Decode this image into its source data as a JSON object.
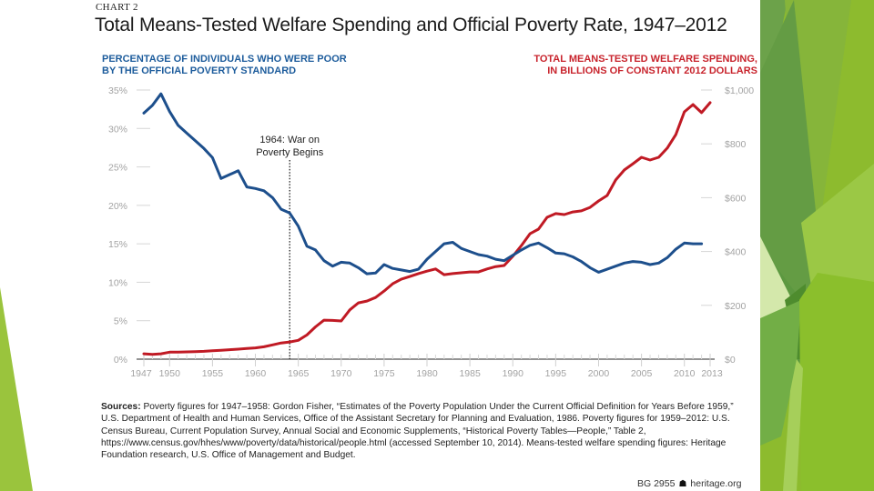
{
  "chart_label": "CHART 2",
  "colors": {
    "poverty_line": "#1d4f8c",
    "spending_line": "#c01a24",
    "left_title": "#1d5c9c",
    "right_title": "#c8232c",
    "axis_text": "#a3a3a3",
    "green_dark": "#5f9a3e",
    "green_mid": "#7fb33a",
    "green_light": "#9ac43d",
    "green_pale": "#cfe3a3"
  },
  "footer": {
    "code": "BG 2955",
    "icon": "liberty-bell-icon",
    "site": "heritage.org"
  },
  "sources": {
    "label": "Sources:",
    "text": " Poverty figures for 1947–1958: Gordon Fisher, “Estimates of the Poverty Population Under the Current Official Definition for Years Before 1959,” U.S. Department of Health and Human Services, Office of the Assistant Secretary for Planning and Evaluation, 1986. Poverty figures for 1959–2012: U.S. Census Bureau, Current Population Survey, Annual Social and Economic Supplements, “Historical Poverty Tables—People,” Table 2, https://www.census.gov/hhes/www/poverty/data/historical/people.html (accessed September 10, 2014). Means-tested welfare spending figures: Heritage Foundation research, U.S. Office of Management and Budget."
  },
  "chart_data": {
    "type": "line",
    "title": "Total Means-Tested Welfare Spending and Official Poverty Rate, 1947–2012",
    "left_axis": {
      "label_line1": "PERCENTAGE OF INDIVIDUALS WHO WERE POOR",
      "label_line2": "BY THE OFFICIAL POVERTY STANDARD",
      "range": [
        0,
        35
      ],
      "ticks": [
        0,
        5,
        10,
        15,
        20,
        25,
        30,
        35
      ],
      "tick_labels": [
        "0%",
        "5%",
        "10%",
        "15%",
        "20%",
        "25%",
        "30%",
        "35%"
      ]
    },
    "right_axis": {
      "label_line1": "TOTAL MEANS-TESTED WELFARE SPENDING,",
      "label_line2": "IN BILLIONS OF CONSTANT 2012 DOLLARS",
      "range": [
        0,
        1000
      ],
      "ticks": [
        0,
        200,
        400,
        600,
        800,
        1000
      ],
      "tick_labels": [
        "$0",
        "$200",
        "$400",
        "$600",
        "$800",
        "$1,000"
      ]
    },
    "x_axis": {
      "range": [
        1947,
        2013
      ],
      "tick_labels": [
        "1947",
        "1950",
        "1955",
        "1960",
        "1965",
        "1970",
        "1975",
        "1980",
        "1985",
        "1990",
        "1995",
        "2000",
        "2005",
        "2010",
        "2013"
      ],
      "tick_values": [
        1947,
        1950,
        1955,
        1960,
        1965,
        1970,
        1975,
        1980,
        1985,
        1990,
        1995,
        2000,
        2005,
        2010,
        2013
      ]
    },
    "grid": false,
    "annotation": {
      "x": 1964,
      "line1": "1964: War on",
      "line2": "Poverty Begins"
    },
    "series": [
      {
        "name": "Official Poverty Rate (%)",
        "axis": "left",
        "x": [
          1947,
          1948,
          1949,
          1950,
          1951,
          1952,
          1953,
          1954,
          1955,
          1956,
          1957,
          1958,
          1959,
          1960,
          1961,
          1962,
          1963,
          1964,
          1965,
          1966,
          1967,
          1968,
          1969,
          1970,
          1971,
          1972,
          1973,
          1974,
          1975,
          1976,
          1977,
          1978,
          1979,
          1980,
          1981,
          1982,
          1983,
          1984,
          1985,
          1986,
          1987,
          1988,
          1989,
          1990,
          1991,
          1992,
          1993,
          1994,
          1995,
          1996,
          1997,
          1998,
          1999,
          2000,
          2001,
          2002,
          2003,
          2004,
          2005,
          2006,
          2007,
          2008,
          2009,
          2010,
          2011,
          2012
        ],
        "values": [
          32.0,
          33.0,
          34.5,
          32.2,
          30.4,
          29.4,
          28.4,
          27.4,
          26.2,
          23.5,
          24.0,
          24.5,
          22.4,
          22.2,
          21.9,
          21.0,
          19.5,
          19.0,
          17.3,
          14.7,
          14.2,
          12.8,
          12.1,
          12.6,
          12.5,
          11.9,
          11.1,
          11.2,
          12.3,
          11.8,
          11.6,
          11.4,
          11.7,
          13.0,
          14.0,
          15.0,
          15.2,
          14.4,
          14.0,
          13.6,
          13.4,
          13.0,
          12.8,
          13.5,
          14.2,
          14.8,
          15.1,
          14.5,
          13.8,
          13.7,
          13.3,
          12.7,
          11.9,
          11.3,
          11.7,
          12.1,
          12.5,
          12.7,
          12.6,
          12.3,
          12.5,
          13.2,
          14.3,
          15.1,
          15.0,
          15.0
        ]
      },
      {
        "name": "Total Means-Tested Welfare Spending (billions, 2012 $)",
        "axis": "right",
        "x": [
          1947,
          1948,
          1949,
          1950,
          1951,
          1952,
          1953,
          1954,
          1955,
          1956,
          1957,
          1958,
          1959,
          1960,
          1961,
          1962,
          1963,
          1964,
          1965,
          1966,
          1967,
          1968,
          1969,
          1970,
          1971,
          1972,
          1973,
          1974,
          1975,
          1976,
          1977,
          1978,
          1979,
          1980,
          1981,
          1982,
          1983,
          1984,
          1985,
          1986,
          1987,
          1988,
          1989,
          1990,
          1991,
          1992,
          1993,
          1994,
          1995,
          1996,
          1997,
          1998,
          1999,
          2000,
          2001,
          2002,
          2003,
          2004,
          2005,
          2006,
          2007,
          2008,
          2009,
          2010,
          2011,
          2012,
          2013
        ],
        "values": [
          20,
          18,
          20,
          26,
          26,
          27,
          28,
          29,
          31,
          33,
          35,
          37,
          40,
          42,
          46,
          53,
          60,
          64,
          70,
          90,
          120,
          145,
          144,
          142,
          183,
          209,
          216,
          229,
          253,
          280,
          297,
          307,
          318,
          327,
          335,
          314,
          318,
          321,
          324,
          324,
          335,
          344,
          348,
          382,
          422,
          466,
          483,
          527,
          541,
          537,
          547,
          551,
          564,
          588,
          608,
          666,
          703,
          726,
          750,
          740,
          750,
          784,
          834,
          919,
          946,
          916,
          953
        ]
      }
    ]
  }
}
